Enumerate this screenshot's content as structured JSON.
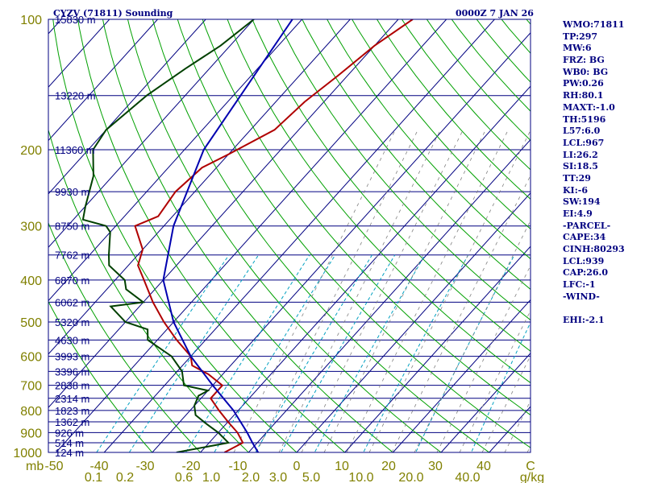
{
  "chart_data": {
    "type": "line",
    "title": "CYZV (71811) Sounding",
    "time_label": "0000Z  7 JAN 26",
    "y_label": "mb",
    "pressure_levels": [
      100,
      200,
      300,
      400,
      500,
      600,
      700,
      800,
      900,
      1000
    ],
    "pressure_tick_labels": [
      "100",
      "200",
      "300",
      "400",
      "500",
      "600",
      "700",
      "800",
      "900",
      "1000"
    ],
    "temperature_axis_labels": [
      "-50",
      "-40",
      "-30",
      "-20",
      "-10",
      "0",
      "10",
      "20",
      "30",
      "40",
      "C"
    ],
    "mixing_ratio_labels": [
      "0.1",
      "0.2",
      "0.6",
      "1.0",
      "2.0",
      "3.0",
      "5.0",
      "10.0",
      "20.0",
      "40.0",
      "g/kg"
    ],
    "height_labels": [
      {
        "p": 100,
        "text": "15830 m"
      },
      {
        "p": 150,
        "text": "13220 m"
      },
      {
        "p": 200,
        "text": "11360 m"
      },
      {
        "p": 250,
        "text": "9930 m"
      },
      {
        "p": 300,
        "text": "8750 m"
      },
      {
        "p": 350,
        "text": "7762 m"
      },
      {
        "p": 400,
        "text": "6870 m"
      },
      {
        "p": 450,
        "text": "6062 m"
      },
      {
        "p": 500,
        "text": "5320 m"
      },
      {
        "p": 550,
        "text": "4630 m"
      },
      {
        "p": 600,
        "text": "3993 m"
      },
      {
        "p": 650,
        "text": "3396 m"
      },
      {
        "p": 700,
        "text": "2838 m"
      },
      {
        "p": 750,
        "text": "2314 m"
      },
      {
        "p": 800,
        "text": "1823 m"
      },
      {
        "p": 850,
        "text": "1362 m"
      },
      {
        "p": 900,
        "text": "926 m"
      },
      {
        "p": 950,
        "text": "514 m"
      },
      {
        "p": 1000,
        "text": "124 m"
      }
    ],
    "series": [
      {
        "name": "Temperature",
        "color": "#b00000",
        "points": [
          {
            "p": 100,
            "t": -57
          },
          {
            "p": 115,
            "t": -60
          },
          {
            "p": 135,
            "t": -62
          },
          {
            "p": 155,
            "t": -64
          },
          {
            "p": 180,
            "t": -65
          },
          {
            "p": 205,
            "t": -70
          },
          {
            "p": 220,
            "t": -73
          },
          {
            "p": 250,
            "t": -74
          },
          {
            "p": 285,
            "t": -73
          },
          {
            "p": 300,
            "t": -76
          },
          {
            "p": 340,
            "t": -70
          },
          {
            "p": 370,
            "t": -68
          },
          {
            "p": 400,
            "t": -64
          },
          {
            "p": 450,
            "t": -58
          },
          {
            "p": 500,
            "t": -52
          },
          {
            "p": 550,
            "t": -46
          },
          {
            "p": 600,
            "t": -40
          },
          {
            "p": 630,
            "t": -38
          },
          {
            "p": 660,
            "t": -33
          },
          {
            "p": 700,
            "t": -28
          },
          {
            "p": 750,
            "t": -28
          },
          {
            "p": 800,
            "t": -24
          },
          {
            "p": 850,
            "t": -20
          },
          {
            "p": 900,
            "t": -16
          },
          {
            "p": 950,
            "t": -13
          },
          {
            "p": 1000,
            "t": -15
          }
        ]
      },
      {
        "name": "Dewpoint",
        "color": "#004000",
        "points": [
          {
            "p": 100,
            "t": -90
          },
          {
            "p": 115,
            "t": -92
          },
          {
            "p": 130,
            "t": -95
          },
          {
            "p": 150,
            "t": -98
          },
          {
            "p": 180,
            "t": -100
          },
          {
            "p": 200,
            "t": -99
          },
          {
            "p": 230,
            "t": -94
          },
          {
            "p": 270,
            "t": -90
          },
          {
            "p": 290,
            "t": -88
          },
          {
            "p": 300,
            "t": -82
          },
          {
            "p": 310,
            "t": -80
          },
          {
            "p": 350,
            "t": -76
          },
          {
            "p": 370,
            "t": -74
          },
          {
            "p": 400,
            "t": -68
          },
          {
            "p": 420,
            "t": -66
          },
          {
            "p": 450,
            "t": -60
          },
          {
            "p": 460,
            "t": -66
          },
          {
            "p": 500,
            "t": -60
          },
          {
            "p": 520,
            "t": -54
          },
          {
            "p": 550,
            "t": -52
          },
          {
            "p": 600,
            "t": -44
          },
          {
            "p": 650,
            "t": -39
          },
          {
            "p": 700,
            "t": -36
          },
          {
            "p": 720,
            "t": -30
          },
          {
            "p": 740,
            "t": -31
          },
          {
            "p": 780,
            "t": -30
          },
          {
            "p": 820,
            "t": -28
          },
          {
            "p": 860,
            "t": -24
          },
          {
            "p": 900,
            "t": -20
          },
          {
            "p": 950,
            "t": -16
          },
          {
            "p": 1000,
            "t": -25
          }
        ]
      },
      {
        "name": "Parcel",
        "color": "#0000b0",
        "points": [
          {
            "p": 100,
            "t": -82
          },
          {
            "p": 200,
            "t": -76
          },
          {
            "p": 300,
            "t": -68
          },
          {
            "p": 400,
            "t": -60
          },
          {
            "p": 500,
            "t": -50
          },
          {
            "p": 600,
            "t": -40
          },
          {
            "p": 700,
            "t": -30
          },
          {
            "p": 800,
            "t": -21
          },
          {
            "p": 900,
            "t": -14
          },
          {
            "p": 950,
            "t": -11
          },
          {
            "p": 1000,
            "t": -8
          }
        ]
      }
    ],
    "colors": {
      "isobar": "#000080",
      "isotherm": "#000080",
      "dry_adiabat": "#00a000",
      "mixing_ratio": "#00a0c0",
      "moist_adiabat": "#808080",
      "axis_text": "#808000"
    }
  },
  "side_panel": {
    "lines": [
      "WMO:71811",
      "TP:297",
      "MW:6",
      "FRZ: BG",
      "WB0: BG",
      "PW:0.26",
      "RH:80.1",
      "MAXT:-1.0",
      "TH:5196",
      "L57:6.0",
      "LCL:967",
      "LI:26.2",
      "SI:18.5",
      "TT:29",
      "KI:-6",
      "SW:194",
      "EI:4.9",
      "-PARCEL-",
      "CAPE:34",
      "CINH:80293",
      "LCL:939",
      "CAP:26.0",
      "LFC:-1",
      "-WIND-",
      "",
      "EHI:-2.1"
    ]
  }
}
